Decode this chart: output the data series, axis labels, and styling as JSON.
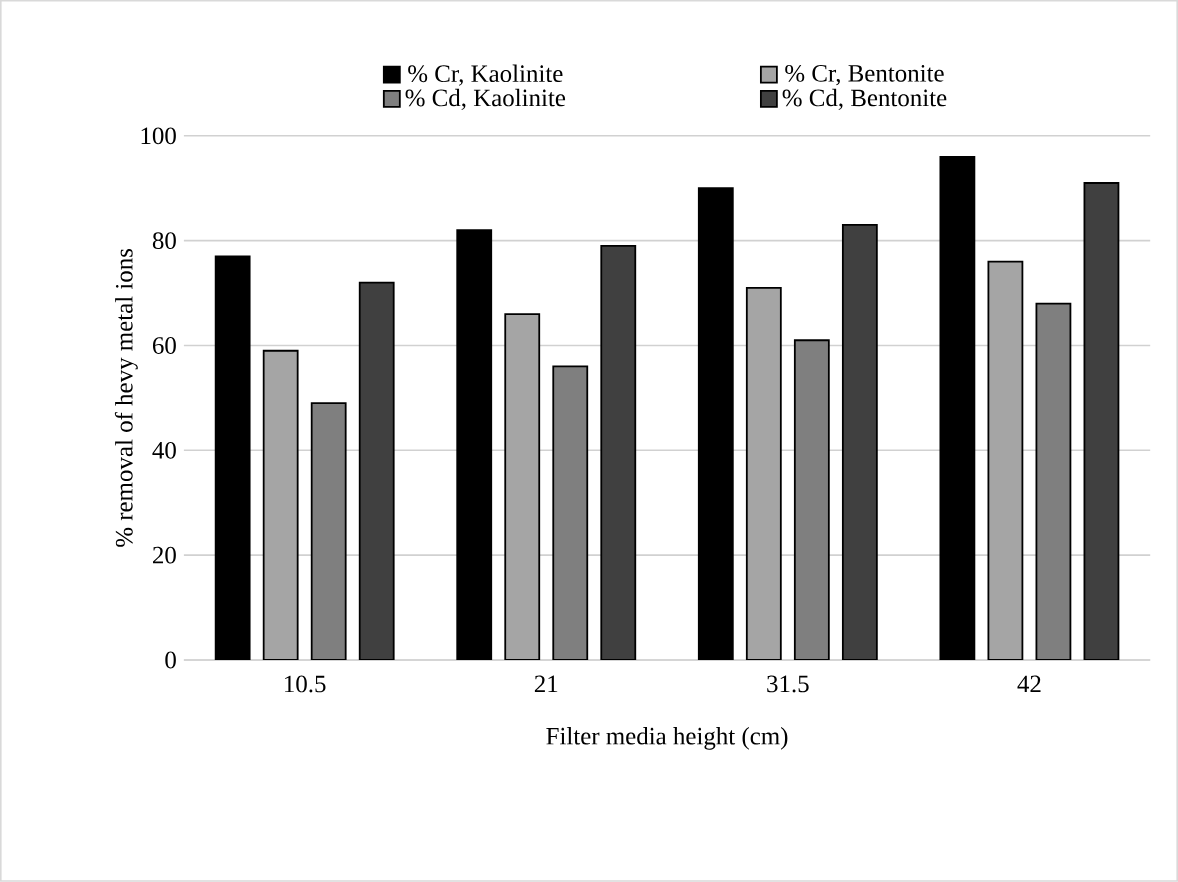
{
  "chart_data": {
    "type": "bar",
    "xlabel": "Filter media height (cm)",
    "ylabel": "% removal of hevy metal ions",
    "categories": [
      "10.5",
      "21",
      "31.5",
      "42"
    ],
    "series": [
      {
        "name": "% Cr, Kaolinite",
        "color": "#000000",
        "values": [
          77,
          82,
          90,
          96
        ]
      },
      {
        "name": "% Cr, Bentonite",
        "color": "#a5a5a5",
        "values": [
          59,
          66,
          71,
          76
        ]
      },
      {
        "name": "% Cd, Kaolinite",
        "color": "#7f7f7f",
        "values": [
          49,
          56,
          61,
          68
        ]
      },
      {
        "name": "% Cd, Bentonite",
        "color": "#404040",
        "values": [
          72,
          79,
          83,
          91
        ]
      }
    ],
    "ylim": [
      0,
      100
    ],
    "yticks": [
      0,
      20,
      40,
      60,
      80,
      100
    ],
    "grid": "y",
    "legend": "top"
  }
}
